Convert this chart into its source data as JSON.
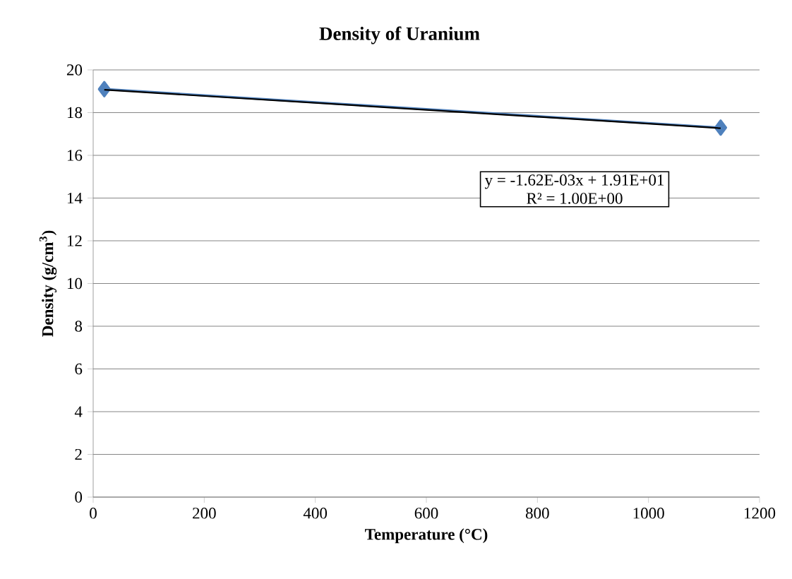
{
  "chart_data": {
    "type": "line",
    "title": "Density of Uranium",
    "xlabel": "Temperature  (°C)",
    "ylabel": "Density (g/cm$^{3}$)",
    "x": [
      20,
      1130
    ],
    "series": [
      {
        "color": "#4f81bd",
        "values": [
          19.1,
          17.3
        ],
        "marker": "diamond"
      },
      {
        "type": "line",
        "color": "#000000",
        "x": [
          20,
          1130
        ],
        "values": [
          19.07,
          17.27
        ],
        "marker": "none"
      }
    ],
    "xlim": [
      0,
      1200
    ],
    "xticks": [
      0,
      200,
      400,
      600,
      800,
      1000,
      1200
    ],
    "ylim": [
      0,
      20
    ],
    "yticks": [
      0,
      2,
      4,
      6,
      8,
      10,
      12,
      14,
      16,
      18,
      20
    ],
    "grid": "y",
    "legend": false,
    "line_style": "solid",
    "annotations": [
      "y = -1.62E-03x + 1.91E+01",
      "R² = 1.00E+00"
    ]
  }
}
